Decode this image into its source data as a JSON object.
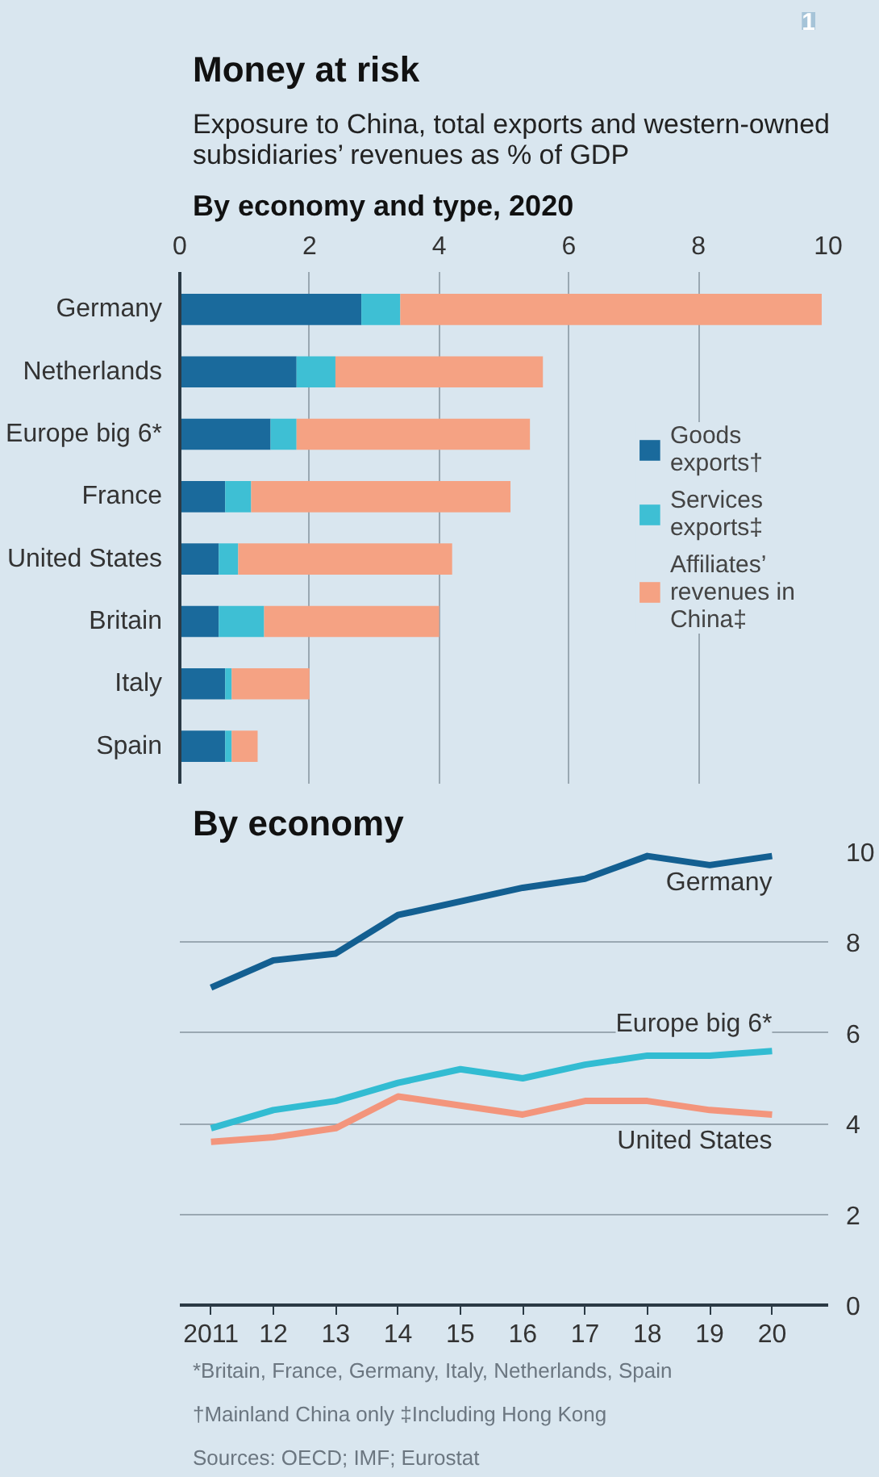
{
  "chart_data": [
    {
      "type": "bar",
      "orientation": "horizontal",
      "stacked": true,
      "title": "Money at risk",
      "subtitle": "Exposure to China, total exports and western-owned subsidiaries’ revenues as % of GDP",
      "annotations": [
        "1",
        "By economy and type, 2020"
      ],
      "categories": [
        "Germany",
        "Netherlands",
        "Europe big 6*",
        "France",
        "United States",
        "Britain",
        "Italy",
        "Spain"
      ],
      "series": [
        {
          "name": "Goods exports†",
          "color": "#1a6a9c",
          "values": [
            2.8,
            1.8,
            1.4,
            0.7,
            0.6,
            0.6,
            0.7,
            0.7
          ]
        },
        {
          "name": "Services exports‡",
          "color": "#3ebfd4",
          "values": [
            0.6,
            0.6,
            0.4,
            0.4,
            0.3,
            0.7,
            0.1,
            0.1
          ]
        },
        {
          "name": "Affiliates’ revenues in China‡",
          "color": "#f5a283",
          "values": [
            6.5,
            3.2,
            3.6,
            4.0,
            3.3,
            2.7,
            1.2,
            0.4
          ]
        }
      ],
      "xlim": [
        0,
        10
      ],
      "xticks": [
        0,
        2,
        4,
        6,
        8,
        10
      ],
      "grid": "x",
      "legend": "right"
    },
    {
      "type": "line",
      "title": "By economy",
      "x": [
        2011,
        2012,
        2013,
        2014,
        2015,
        2016,
        2017,
        2018,
        2019,
        2020
      ],
      "series": [
        {
          "name": "Germany",
          "color": "#135f91",
          "values": [
            7.0,
            7.6,
            7.75,
            8.6,
            8.9,
            9.2,
            9.4,
            9.9,
            9.7,
            9.9
          ]
        },
        {
          "name": "Europe big 6*",
          "color": "#32bcd2",
          "values": [
            3.9,
            4.3,
            4.5,
            4.9,
            5.2,
            5.0,
            5.3,
            5.5,
            5.5,
            5.6
          ]
        },
        {
          "name": "United States",
          "color": "#f3957c",
          "values": [
            3.6,
            3.7,
            3.9,
            4.6,
            4.4,
            4.2,
            4.5,
            4.5,
            4.3,
            4.2
          ]
        }
      ],
      "xlim": [
        2010.5,
        2020.9
      ],
      "xticks": [
        {
          "value": 2011,
          "label": "2011"
        },
        {
          "value": 2012,
          "label": "12"
        },
        {
          "value": 2013,
          "label": "13"
        },
        {
          "value": 2014,
          "label": "14"
        },
        {
          "value": 2015,
          "label": "15"
        },
        {
          "value": 2016,
          "label": "16"
        },
        {
          "value": 2017,
          "label": "17"
        },
        {
          "value": 2018,
          "label": "18"
        },
        {
          "value": 2019,
          "label": "19"
        },
        {
          "value": 2020,
          "label": "20"
        }
      ],
      "ylim": [
        0,
        10
      ],
      "yticks": [
        0,
        2,
        4,
        6,
        8,
        10
      ],
      "grid": "y",
      "marker": "none",
      "line_style": "solid",
      "annotations": [
        "*Britain, France, Germany, Italy, Netherlands, Spain",
        "†Mainland China only    ‡Including Hong Kong",
        "Sources: OECD; IMF; Eurostat"
      ]
    }
  ]
}
